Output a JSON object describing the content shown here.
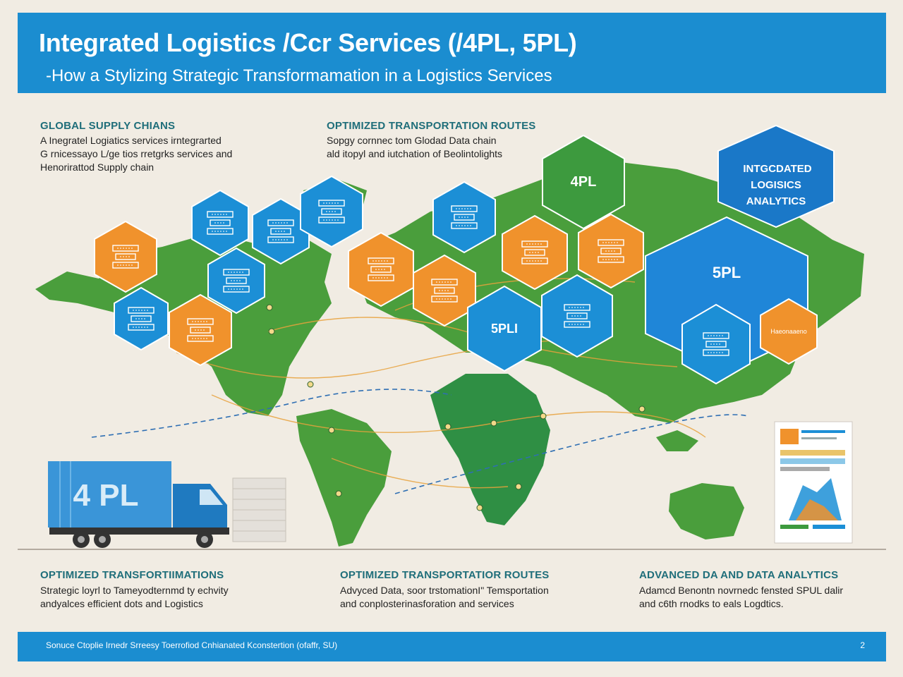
{
  "header": {
    "title": "Integrated Logistics /Ccr Services (/4PL, 5PL)",
    "subtitle": "-How a Stylizing Strategic Transformamation in a Logistics Services"
  },
  "top_sections": [
    {
      "title": "GLOBAL SUPPLY CHIANS",
      "lines": [
        "A Inegratel Logiatics services irntegrarted",
        "G rnicessayo L/ge tios rretgrks services and",
        "Henorirattod Supply chain"
      ]
    },
    {
      "title": "OPTIMIZED TRANSPORTATION ROUTES",
      "lines": [
        "Sopgy cornnec tom Glodad Data chain",
        "ald itopyl and iutchation of Beolintolights"
      ]
    }
  ],
  "map": {
    "hex_4pl_label": "4PL",
    "hex_5pl_label": "5PL",
    "hex_5pli_label": "5PLI",
    "analytics_label_lines": [
      "INTGCDATED",
      "LOGISICS",
      "ANALYTICS"
    ],
    "small_hex_label": "Haeonaaeno",
    "truck_label": "4 PL"
  },
  "bottom_sections": [
    {
      "title": "OPTIMIZED TRANSFORTIIMATIONS",
      "lines": [
        "Strategic loyrl to Tameyodternmd ty echvity",
        "andyalces  efficient dots and Logistics"
      ]
    },
    {
      "title": "OPTIMIZED TRANSPORTATIOR ROUTES",
      "lines": [
        "Advyced Data, soor trstomationI\" Temsportation",
        "and conplosterinasforation and services"
      ]
    },
    {
      "title": "ADVANCED DA AND DATA ANALYTICS",
      "lines": [
        "Adamcd Benontn novrnedc fensted SPUL dalir",
        "and c6th rnodks to eals Logdtics."
      ]
    }
  ],
  "footer": {
    "source": "Sonuce Ctoplie Irnedr Srreesy  Toerrofiod Cnhianated Kconstertion (ofaffr,  SU)",
    "page": "2"
  },
  "colors": {
    "header_blue": "#1b8dd0",
    "land_green": "#4a9e3c",
    "hex_orange": "#f0922c",
    "hex_blue": "#1c8fd6",
    "hex_green": "#3d9a3e",
    "analytics_blue": "#1a78c8"
  }
}
